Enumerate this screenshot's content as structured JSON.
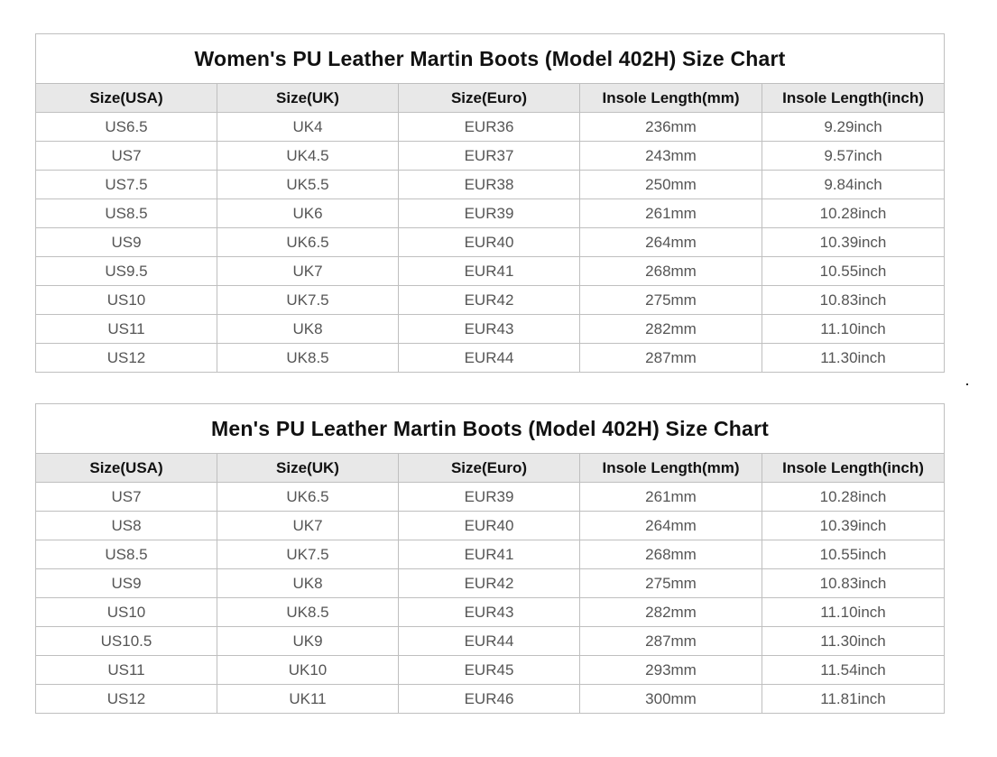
{
  "tables": [
    {
      "title": "Women's PU Leather Martin Boots (Model 402H) Size Chart",
      "headers": [
        "Size(USA)",
        "Size(UK)",
        "Size(Euro)",
        "Insole Length(mm)",
        "Insole Length(inch)"
      ],
      "rows": [
        [
          "US6.5",
          "UK4",
          "EUR36",
          "236mm",
          "9.29inch"
        ],
        [
          "US7",
          "UK4.5",
          "EUR37",
          "243mm",
          "9.57inch"
        ],
        [
          "US7.5",
          "UK5.5",
          "EUR38",
          "250mm",
          "9.84inch"
        ],
        [
          "US8.5",
          "UK6",
          "EUR39",
          "261mm",
          "10.28inch"
        ],
        [
          "US9",
          "UK6.5",
          "EUR40",
          "264mm",
          "10.39inch"
        ],
        [
          "US9.5",
          "UK7",
          "EUR41",
          "268mm",
          "10.55inch"
        ],
        [
          "US10",
          "UK7.5",
          "EUR42",
          "275mm",
          "10.83inch"
        ],
        [
          "US11",
          "UK8",
          "EUR43",
          "282mm",
          "11.10inch"
        ],
        [
          "US12",
          "UK8.5",
          "EUR44",
          "287mm",
          "11.30inch"
        ]
      ]
    },
    {
      "title": "Men's PU Leather Martin Boots (Model 402H) Size Chart",
      "headers": [
        "Size(USA)",
        "Size(UK)",
        "Size(Euro)",
        "Insole Length(mm)",
        "Insole Length(inch)"
      ],
      "rows": [
        [
          "US7",
          "UK6.5",
          "EUR39",
          "261mm",
          "10.28inch"
        ],
        [
          "US8",
          "UK7",
          "EUR40",
          "264mm",
          "10.39inch"
        ],
        [
          "US8.5",
          "UK7.5",
          "EUR41",
          "268mm",
          "10.55inch"
        ],
        [
          "US9",
          "UK8",
          "EUR42",
          "275mm",
          "10.83inch"
        ],
        [
          "US10",
          "UK8.5",
          "EUR43",
          "282mm",
          "11.10inch"
        ],
        [
          "US10.5",
          "UK9",
          "EUR44",
          "287mm",
          "11.30inch"
        ],
        [
          "US11",
          "UK10",
          "EUR45",
          "293mm",
          "11.54inch"
        ],
        [
          "US12",
          "UK11",
          "EUR46",
          "300mm",
          "11.81inch"
        ]
      ]
    }
  ],
  "colors": {
    "header_background": "#e8e8e8",
    "border": "#bfbfbf",
    "cell_text": "#555555",
    "heading_text": "#111111"
  }
}
